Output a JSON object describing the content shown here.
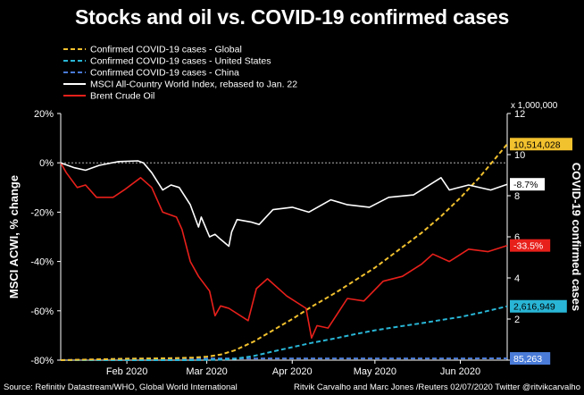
{
  "title": "Stocks and oil vs. COVID-19 confirmed cases",
  "footer": {
    "source": "Source: Refinitiv Datastream/WHO, Global World International",
    "credit": "Ritvik Carvalho and Marc Jones /Reuters 02/07/2020 Twitter @ritvikcarvalho"
  },
  "colors": {
    "background": "#000000",
    "global": "#f2c12e",
    "us": "#29b6d6",
    "china": "#4a7bd8",
    "msci": "#ffffff",
    "brent": "#e8201b"
  },
  "chart_data": {
    "type": "line",
    "title": "Stocks and oil vs. COVID-19 confirmed cases",
    "ylabel_left": "MSCI ACWI, % change",
    "ylabel_right": "COVID-19 confirmed cases",
    "right_axis_unit": "x 1,000,000",
    "ylim_left": [
      -80,
      20
    ],
    "ylim_right": [
      0,
      12
    ],
    "left_ticks": [
      20,
      0,
      -20,
      -40,
      -60,
      -80
    ],
    "left_tick_labels": [
      "20%",
      "0%",
      "-20%",
      "-40%",
      "-60%",
      "-80%"
    ],
    "right_ticks": [
      0,
      2,
      4,
      6,
      8,
      10,
      12
    ],
    "right_tick_labels": [
      "0",
      "2",
      "4",
      "6",
      "8",
      "10",
      "12"
    ],
    "xlim": [
      "2020-01-22",
      "2020-07-02"
    ],
    "x_ticks": [
      "2020-02-15",
      "2020-03-15",
      "2020-04-15",
      "2020-05-15",
      "2020-06-15"
    ],
    "x_tick_labels": [
      "Feb 2020",
      "Mar 2020",
      "Apr 2020",
      "May 2020",
      "Jun 2020"
    ],
    "grid": false,
    "legend_position": "top-left",
    "series": [
      {
        "name": "Confirmed COVID-19 cases - Global",
        "axis": "right",
        "style": "dashed",
        "end_label": "10,514,028",
        "points": [
          [
            "2020-01-22",
            0.0
          ],
          [
            "2020-02-15",
            0.07
          ],
          [
            "2020-03-01",
            0.09
          ],
          [
            "2020-03-10",
            0.12
          ],
          [
            "2020-03-15",
            0.17
          ],
          [
            "2020-03-20",
            0.27
          ],
          [
            "2020-03-25",
            0.47
          ],
          [
            "2020-04-01",
            0.9
          ],
          [
            "2020-04-08",
            1.45
          ],
          [
            "2020-04-15",
            2.0
          ],
          [
            "2020-04-22",
            2.6
          ],
          [
            "2020-05-01",
            3.3
          ],
          [
            "2020-05-08",
            3.9
          ],
          [
            "2020-05-15",
            4.5
          ],
          [
            "2020-05-22",
            5.2
          ],
          [
            "2020-06-01",
            6.2
          ],
          [
            "2020-06-08",
            7.0
          ],
          [
            "2020-06-15",
            7.9
          ],
          [
            "2020-06-22",
            8.9
          ],
          [
            "2020-07-02",
            10.51
          ]
        ]
      },
      {
        "name": "Confirmed COVID-19 cases - United States",
        "axis": "right",
        "style": "dashed",
        "end_label": "2,616,949",
        "points": [
          [
            "2020-01-22",
            0.0
          ],
          [
            "2020-03-10",
            0.0
          ],
          [
            "2020-03-20",
            0.02
          ],
          [
            "2020-03-25",
            0.06
          ],
          [
            "2020-04-01",
            0.2
          ],
          [
            "2020-04-08",
            0.42
          ],
          [
            "2020-04-15",
            0.63
          ],
          [
            "2020-04-22",
            0.84
          ],
          [
            "2020-05-01",
            1.07
          ],
          [
            "2020-05-08",
            1.27
          ],
          [
            "2020-05-15",
            1.45
          ],
          [
            "2020-05-22",
            1.6
          ],
          [
            "2020-06-01",
            1.8
          ],
          [
            "2020-06-08",
            1.95
          ],
          [
            "2020-06-15",
            2.1
          ],
          [
            "2020-06-22",
            2.3
          ],
          [
            "2020-07-02",
            2.62
          ]
        ]
      },
      {
        "name": "Confirmed COVID-19 cases - China",
        "axis": "right",
        "style": "dashed",
        "end_label": "85,263",
        "points": [
          [
            "2020-01-22",
            0.0
          ],
          [
            "2020-02-05",
            0.03
          ],
          [
            "2020-02-15",
            0.07
          ],
          [
            "2020-03-01",
            0.08
          ],
          [
            "2020-03-15",
            0.081
          ],
          [
            "2020-04-15",
            0.083
          ],
          [
            "2020-05-15",
            0.084
          ],
          [
            "2020-06-15",
            0.084
          ],
          [
            "2020-07-02",
            0.085
          ]
        ]
      },
      {
        "name": "MSCI All-Country World Index, rebased to Jan. 22",
        "axis": "left",
        "style": "solid",
        "end_label": "-8.7%",
        "points": [
          [
            "2020-01-22",
            0.0
          ],
          [
            "2020-01-27",
            -2.0
          ],
          [
            "2020-01-31",
            -3.0
          ],
          [
            "2020-02-05",
            -1.0
          ],
          [
            "2020-02-12",
            0.5
          ],
          [
            "2020-02-19",
            0.8
          ],
          [
            "2020-02-21",
            0.0
          ],
          [
            "2020-02-24",
            -4.0
          ],
          [
            "2020-02-28",
            -11.0
          ],
          [
            "2020-03-02",
            -9.0
          ],
          [
            "2020-03-05",
            -10.0
          ],
          [
            "2020-03-09",
            -17.0
          ],
          [
            "2020-03-12",
            -26.0
          ],
          [
            "2020-03-13",
            -22.0
          ],
          [
            "2020-03-16",
            -30.0
          ],
          [
            "2020-03-18",
            -29.0
          ],
          [
            "2020-03-20",
            -31.0
          ],
          [
            "2020-03-23",
            -33.8
          ],
          [
            "2020-03-24",
            -28.0
          ],
          [
            "2020-03-26",
            -23.0
          ],
          [
            "2020-03-31",
            -24.0
          ],
          [
            "2020-04-03",
            -25.0
          ],
          [
            "2020-04-08",
            -19.0
          ],
          [
            "2020-04-15",
            -18.0
          ],
          [
            "2020-04-21",
            -20.0
          ],
          [
            "2020-04-29",
            -15.0
          ],
          [
            "2020-05-05",
            -17.0
          ],
          [
            "2020-05-13",
            -18.0
          ],
          [
            "2020-05-20",
            -14.0
          ],
          [
            "2020-05-29",
            -13.0
          ],
          [
            "2020-06-08",
            -6.0
          ],
          [
            "2020-06-11",
            -11.0
          ],
          [
            "2020-06-18",
            -9.0
          ],
          [
            "2020-06-26",
            -11.0
          ],
          [
            "2020-07-02",
            -8.7
          ]
        ]
      },
      {
        "name": "Brent Crude Oil",
        "axis": "left",
        "style": "solid",
        "end_label": "-33.5%",
        "points": [
          [
            "2020-01-22",
            0.0
          ],
          [
            "2020-01-24",
            -4.0
          ],
          [
            "2020-01-28",
            -10.0
          ],
          [
            "2020-01-31",
            -9.0
          ],
          [
            "2020-02-04",
            -14.0
          ],
          [
            "2020-02-10",
            -14.0
          ],
          [
            "2020-02-14",
            -11.0
          ],
          [
            "2020-02-20",
            -6.0
          ],
          [
            "2020-02-24",
            -10.0
          ],
          [
            "2020-02-28",
            -20.0
          ],
          [
            "2020-03-04",
            -22.0
          ],
          [
            "2020-03-06",
            -27.0
          ],
          [
            "2020-03-09",
            -40.0
          ],
          [
            "2020-03-12",
            -46.0
          ],
          [
            "2020-03-16",
            -52.0
          ],
          [
            "2020-03-18",
            -62.0
          ],
          [
            "2020-03-20",
            -58.0
          ],
          [
            "2020-03-23",
            -59.0
          ],
          [
            "2020-03-30",
            -64.0
          ],
          [
            "2020-04-02",
            -51.0
          ],
          [
            "2020-04-06",
            -47.0
          ],
          [
            "2020-04-13",
            -54.0
          ],
          [
            "2020-04-20",
            -59.0
          ],
          [
            "2020-04-22",
            -71.0
          ],
          [
            "2020-04-24",
            -66.0
          ],
          [
            "2020-04-28",
            -67.0
          ],
          [
            "2020-05-05",
            -55.0
          ],
          [
            "2020-05-11",
            -56.0
          ],
          [
            "2020-05-18",
            -48.0
          ],
          [
            "2020-05-25",
            -46.0
          ],
          [
            "2020-06-01",
            -41.0
          ],
          [
            "2020-06-05",
            -37.0
          ],
          [
            "2020-06-11",
            -40.0
          ],
          [
            "2020-06-18",
            -35.0
          ],
          [
            "2020-06-25",
            -36.0
          ],
          [
            "2020-07-02",
            -33.5
          ]
        ]
      }
    ]
  }
}
